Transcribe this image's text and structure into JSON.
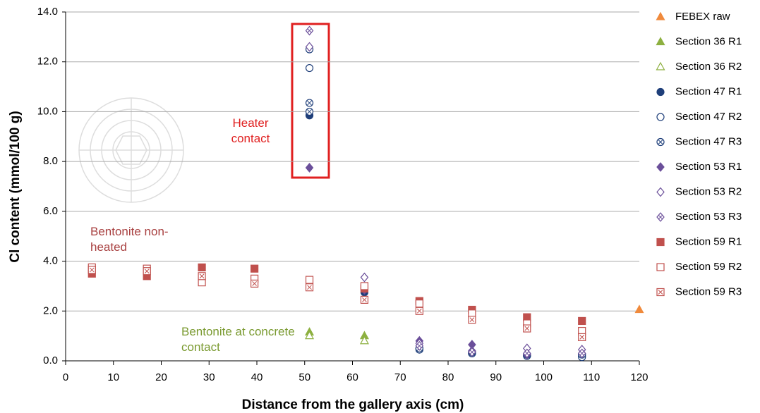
{
  "chart_data": {
    "type": "scatter",
    "x_label": "Distance from the gallery axis (cm)",
    "y_label": "Cl content  (mmol/100 g)",
    "xlim": [
      0,
      120
    ],
    "ylim": [
      0,
      14
    ],
    "xticks": [
      0,
      10,
      20,
      30,
      40,
      50,
      60,
      70,
      80,
      90,
      100,
      110,
      120
    ],
    "yticks": [
      {
        "value": 0,
        "label": "0.0"
      },
      {
        "value": 2,
        "label": "2.0"
      },
      {
        "value": 4,
        "label": "4.0"
      },
      {
        "value": 6,
        "label": "6.0"
      },
      {
        "value": 8,
        "label": "8.0"
      },
      {
        "value": 10,
        "label": "10.0"
      },
      {
        "value": 12,
        "label": "12.0"
      },
      {
        "value": 14,
        "label": "14.0"
      }
    ],
    "grid": true,
    "legend": "right",
    "annotations": [
      {
        "text": "Heater contact",
        "color": "#e02020"
      },
      {
        "text": "Bentonite non-heated",
        "color": "#a84040"
      },
      {
        "text": "Bentonite at concrete contact",
        "color": "#7a9a30"
      }
    ],
    "series": [
      {
        "name": "FEBEX raw",
        "color": "#f08a3c",
        "marker": "triangle",
        "style": "filled",
        "x": [
          120
        ],
        "values": [
          2.05
        ]
      },
      {
        "name": "Section 36 R1",
        "color": "#8db040",
        "marker": "triangle",
        "style": "filled",
        "x": [
          51,
          62.5
        ],
        "values": [
          1.15,
          1.0
        ]
      },
      {
        "name": "Section 36 R2",
        "color": "#8db040",
        "marker": "triangle",
        "style": "open",
        "x": [
          51,
          62.5
        ],
        "values": [
          1.0,
          0.8
        ]
      },
      {
        "name": "Section 47 R1",
        "color": "#1f3f7a",
        "marker": "circle",
        "style": "filled",
        "x": [
          51,
          62.5,
          74,
          85,
          96.5,
          108
        ],
        "values": [
          9.85,
          2.75,
          0.5,
          0.3,
          0.2,
          0.2
        ]
      },
      {
        "name": "Section 47 R2",
        "color": "#1f3f7a",
        "marker": "circle",
        "style": "open",
        "x": [
          51,
          51,
          74,
          85,
          96.5,
          108
        ],
        "values": [
          12.5,
          11.75,
          0.45,
          0.3,
          0.2,
          0.15
        ]
      },
      {
        "name": "Section 47 R3",
        "color": "#1f3f7a",
        "marker": "circle",
        "style": "hatched",
        "x": [
          51,
          51,
          74,
          85,
          96.5,
          108
        ],
        "values": [
          10.35,
          10.0,
          0.5,
          0.35,
          0.25,
          0.25
        ]
      },
      {
        "name": "Section 53 R1",
        "color": "#6b4f9a",
        "marker": "diamond",
        "style": "filled",
        "x": [
          51,
          62.5,
          74,
          85,
          96.5,
          108
        ],
        "values": [
          7.75,
          2.85,
          0.8,
          0.65,
          0.25,
          0.3
        ]
      },
      {
        "name": "Section 53 R2",
        "color": "#6b4f9a",
        "marker": "diamond",
        "style": "open",
        "x": [
          51,
          62.5,
          74,
          85,
          96.5,
          108
        ],
        "values": [
          12.6,
          3.35,
          0.7,
          0.4,
          0.5,
          0.45
        ]
      },
      {
        "name": "Section 53 R3",
        "color": "#6b4f9a",
        "marker": "diamond",
        "style": "hatched",
        "x": [
          51,
          74,
          85,
          96.5,
          108
        ],
        "values": [
          13.25,
          0.6,
          0.35,
          0.3,
          0.3
        ]
      },
      {
        "name": "Section 59 R1",
        "color": "#c0504d",
        "marker": "square",
        "style": "filled",
        "x": [
          5.5,
          17,
          28.5,
          39.5,
          62.5,
          74,
          85,
          96.5,
          108
        ],
        "values": [
          3.5,
          3.4,
          3.75,
          3.7,
          2.9,
          2.4,
          2.05,
          1.75,
          1.6
        ]
      },
      {
        "name": "Section 59 R2",
        "color": "#c0504d",
        "marker": "square",
        "style": "open",
        "x": [
          5.5,
          17,
          28.5,
          39.5,
          51,
          62.5,
          74,
          85,
          96.5,
          108
        ],
        "values": [
          3.75,
          3.7,
          3.15,
          3.3,
          3.25,
          3.0,
          2.3,
          1.9,
          1.5,
          1.2
        ]
      },
      {
        "name": "Section 59 R3",
        "color": "#c0504d",
        "marker": "square",
        "style": "hatched",
        "x": [
          5.5,
          17,
          28.5,
          39.5,
          51,
          62.5,
          74,
          85,
          96.5,
          108
        ],
        "values": [
          3.65,
          3.6,
          3.4,
          3.1,
          2.95,
          2.45,
          2.0,
          1.65,
          1.3,
          0.95
        ]
      }
    ]
  }
}
